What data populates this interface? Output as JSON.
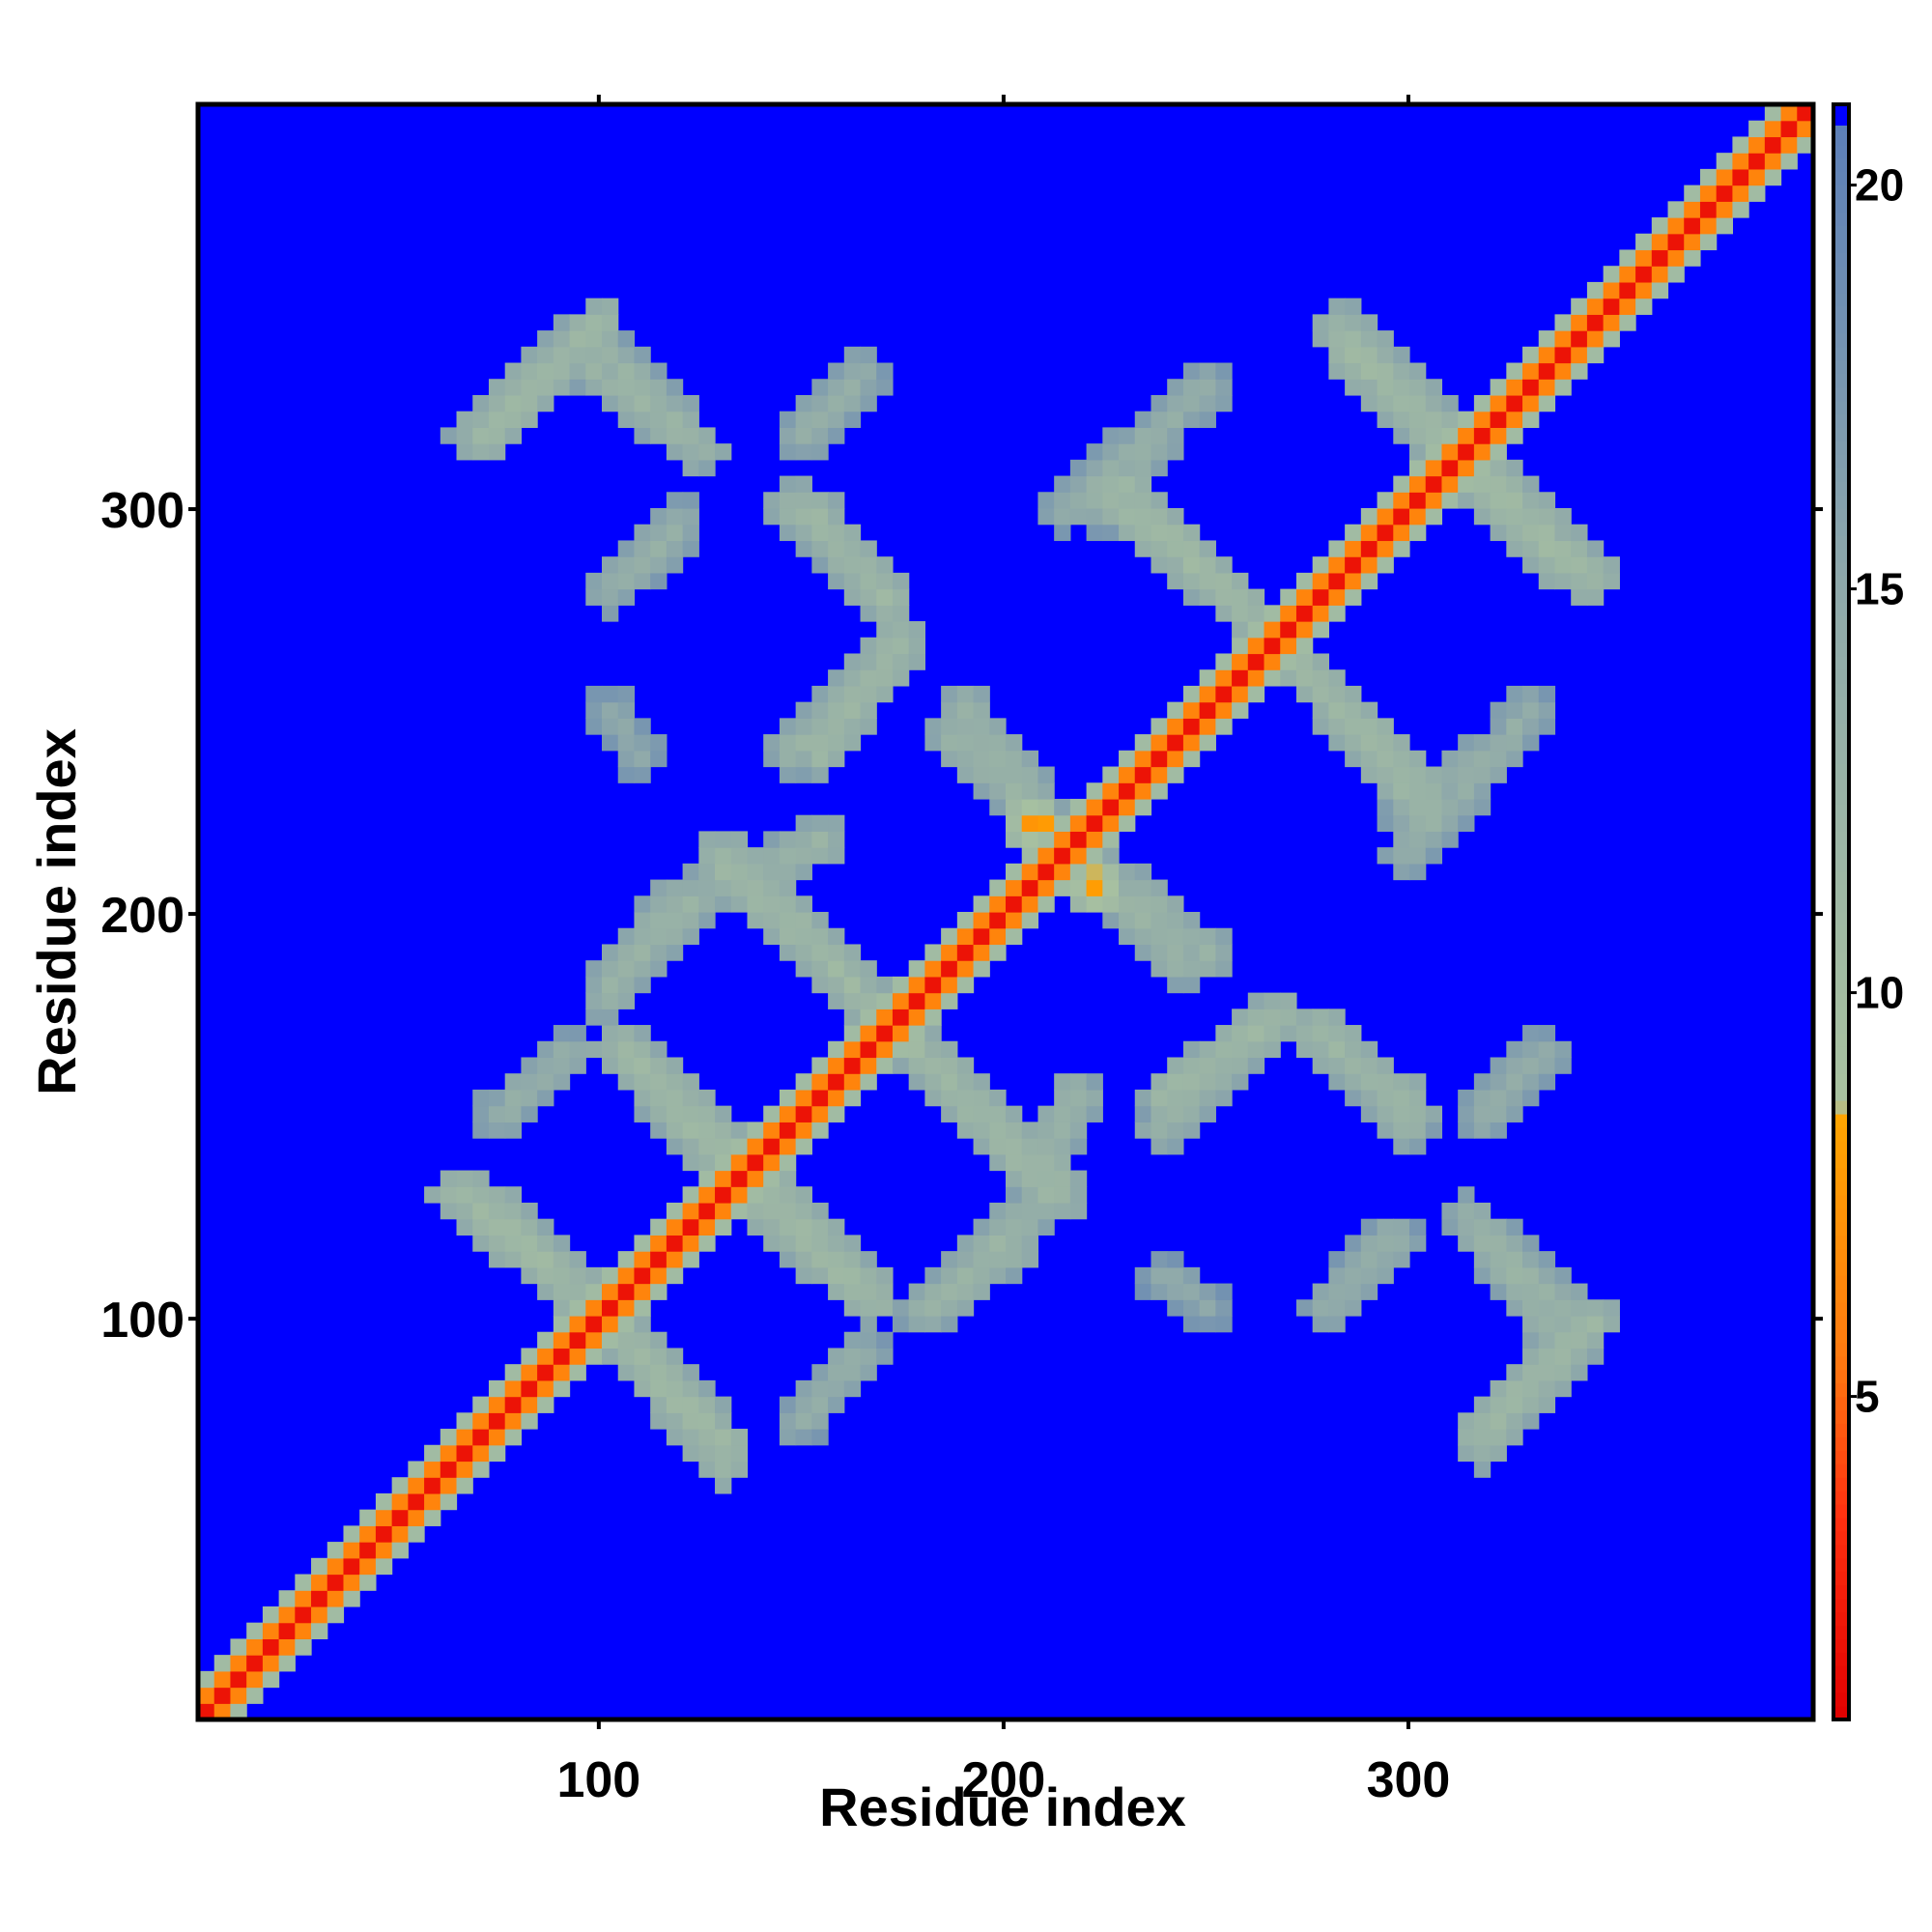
{
  "chart_data": {
    "type": "heatmap",
    "title": "",
    "xlabel": "Residue index",
    "ylabel": "Residue index",
    "xlim": [
      1,
      400
    ],
    "ylim": [
      1,
      400
    ],
    "x_ticks": [
      100,
      200,
      300
    ],
    "y_ticks": [
      100,
      200,
      300
    ],
    "colorbar": {
      "min": 1,
      "max": 21,
      "ticks": [
        5,
        10,
        15,
        20
      ],
      "scale": [
        {
          "value": 1.0,
          "color": "#e00000"
        },
        {
          "value": 3.5,
          "color": "#ff3010"
        },
        {
          "value": 5.5,
          "color": "#ff7a10"
        },
        {
          "value": 8.5,
          "color": "#ffa500"
        },
        {
          "value": 8.6,
          "color": "#a9c2a0"
        },
        {
          "value": 15.0,
          "color": "#8fa9aa"
        },
        {
          "value": 21.0,
          "color": "#5a7db8"
        }
      ],
      "background_color": "#0000ff"
    },
    "diagonal": {
      "value_center": 2,
      "value_edge": 14,
      "half_width": 8
    },
    "contact_bands": [
      {
        "name": "b1",
        "x0": 65,
        "y0": 131,
        "x1": 105,
        "y1": 97,
        "value": 11
      },
      {
        "name": "b2",
        "x0": 103,
        "y0": 100,
        "x1": 132,
        "y1": 68,
        "value": 11
      },
      {
        "name": "b3",
        "x0": 106,
        "y0": 165,
        "x1": 135,
        "y1": 134,
        "value": 11
      },
      {
        "name": "b4",
        "x0": 140,
        "y0": 135,
        "x1": 168,
        "y1": 105,
        "value": 11
      },
      {
        "name": "b5",
        "x0": 105,
        "y0": 185,
        "x1": 125,
        "y1": 205,
        "value": 12
      },
      {
        "name": "b6",
        "x0": 135,
        "y0": 212,
        "x1": 170,
        "y1": 175,
        "value": 11
      },
      {
        "name": "b7",
        "x0": 180,
        "y0": 165,
        "x1": 213,
        "y1": 130,
        "value": 11
      },
      {
        "name": "b8",
        "x0": 180,
        "y0": 102,
        "x1": 203,
        "y1": 118,
        "value": 12
      },
      {
        "name": "b9",
        "x0": 148,
        "y0": 240,
        "x1": 170,
        "y1": 262,
        "value": 12
      },
      {
        "name": "b10",
        "x0": 188,
        "y0": 243,
        "x1": 212,
        "y1": 222,
        "value": 12
      },
      {
        "name": "b11",
        "x0": 148,
        "y0": 300,
        "x1": 170,
        "y1": 280,
        "value": 12
      },
      {
        "name": "b12",
        "x0": 69,
        "y0": 318,
        "x1": 91,
        "y1": 340,
        "value": 12
      },
      {
        "name": "b13",
        "x0": 95,
        "y0": 338,
        "x1": 125,
        "y1": 315,
        "value": 12
      },
      {
        "name": "b14",
        "x0": 150,
        "y0": 318,
        "x1": 163,
        "y1": 330,
        "value": 13
      },
      {
        "name": "b15",
        "x0": 108,
        "y0": 285,
        "x1": 120,
        "y1": 295,
        "value": 13
      },
      {
        "name": "b16",
        "x0": 230,
        "y0": 305,
        "x1": 270,
        "y1": 265,
        "value": 11
      },
      {
        "name": "b17",
        "x0": 272,
        "y0": 263,
        "x1": 305,
        "y1": 225,
        "value": 11
      },
      {
        "name": "b18",
        "x0": 285,
        "y0": 340,
        "x1": 312,
        "y1": 312,
        "value": 11
      },
      {
        "name": "b19",
        "x0": 318,
        "y0": 310,
        "x1": 345,
        "y1": 283,
        "value": 11
      },
      {
        "name": "b20",
        "x0": 233,
        "y0": 205,
        "x1": 250,
        "y1": 190,
        "value": 12
      },
      {
        "name": "b21",
        "x0": 240,
        "y0": 155,
        "x1": 268,
        "y1": 175,
        "value": 11
      },
      {
        "name": "b22",
        "x0": 277,
        "y0": 172,
        "x1": 300,
        "y1": 152,
        "value": 11
      },
      {
        "name": "b23",
        "x0": 318,
        "y0": 72,
        "x1": 346,
        "y1": 100,
        "value": 11
      },
      {
        "name": "b24",
        "x0": 320,
        "y0": 120,
        "x1": 340,
        "y1": 100,
        "value": 12
      },
      {
        "name": "b25",
        "x0": 320,
        "y0": 152,
        "x1": 333,
        "y1": 165,
        "value": 13
      },
      {
        "name": "b26",
        "x0": 280,
        "y0": 103,
        "x1": 297,
        "y1": 120,
        "value": 13
      },
      {
        "name": "b27",
        "x0": 240,
        "y0": 110,
        "x1": 250,
        "y1": 103,
        "value": 14
      },
      {
        "name": "b28",
        "x0": 207,
        "y0": 223,
        "x1": 222,
        "y1": 208,
        "value": 7
      },
      {
        "name": "b29",
        "x0": 210,
        "y0": 138,
        "x1": 218,
        "y1": 155,
        "value": 12
      },
      {
        "name": "b30",
        "x0": 150,
        "y0": 75,
        "x1": 165,
        "y1": 92,
        "value": 13
      },
      {
        "name": "b31",
        "x0": 225,
        "y0": 300,
        "x1": 240,
        "y1": 320,
        "value": 13
      },
      {
        "name": "b32",
        "x0": 300,
        "y0": 215,
        "x1": 330,
        "y1": 250,
        "value": 13
      }
    ]
  }
}
